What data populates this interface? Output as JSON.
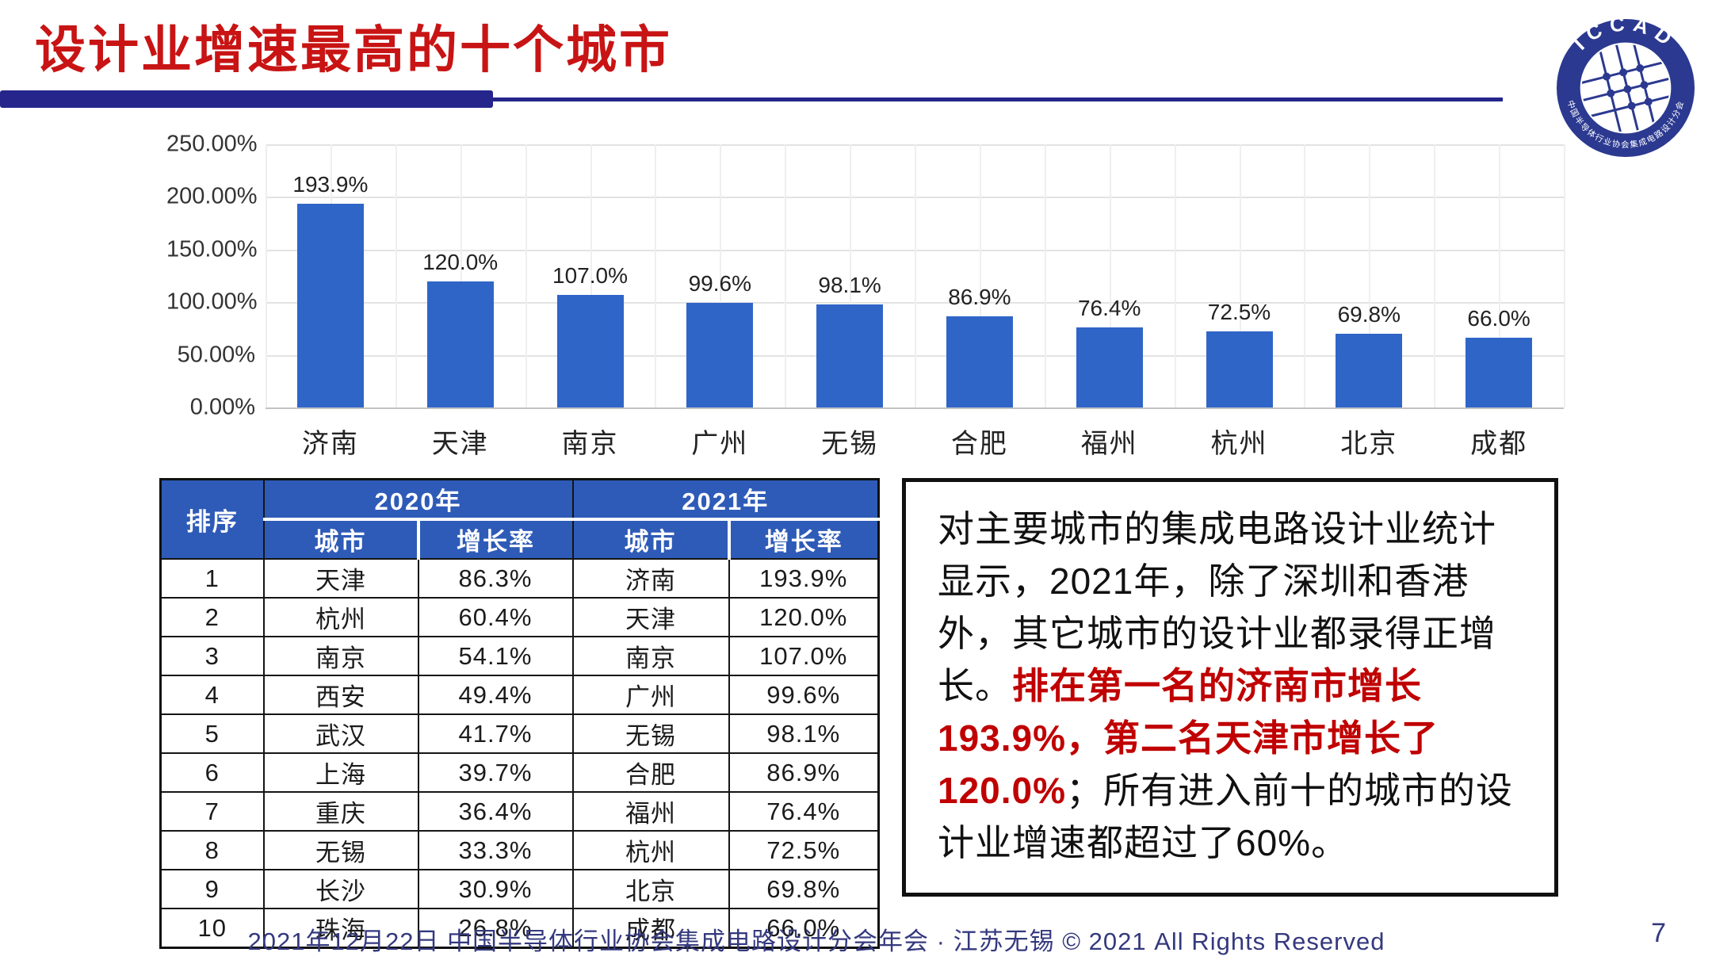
{
  "title": "设计业增速最高的十个城市",
  "logo": {
    "top_text": "ICCAD",
    "ring_text": "中国半导体行业协会集成电路设计分会"
  },
  "chart_data": {
    "type": "bar",
    "title": "",
    "xlabel": "",
    "ylabel": "",
    "categories": [
      "济南",
      "天津",
      "南京",
      "广州",
      "无锡",
      "合肥",
      "福州",
      "杭州",
      "北京",
      "成都"
    ],
    "values": [
      193.9,
      120.0,
      107.0,
      99.6,
      98.1,
      86.9,
      76.4,
      72.5,
      69.8,
      66.0
    ],
    "data_labels": [
      "193.9%",
      "120.0%",
      "107.0%",
      "99.6%",
      "98.1%",
      "86.9%",
      "76.4%",
      "72.5%",
      "69.8%",
      "66.0%"
    ],
    "ylim": [
      0,
      250
    ],
    "yticks": [
      "250.00%",
      "200.00%",
      "150.00%",
      "100.00%",
      "50.00%",
      "0.00%"
    ],
    "grid": true,
    "legend": "none",
    "bar_color": "#3065C8"
  },
  "table": {
    "rank_header": "排序",
    "group_headers": [
      "2020年",
      "2021年"
    ],
    "sub_headers": [
      "城市",
      "增长率",
      "城市",
      "增长率"
    ],
    "rows": [
      [
        "1",
        "天津",
        "86.3%",
        "济南",
        "193.9%"
      ],
      [
        "2",
        "杭州",
        "60.4%",
        "天津",
        "120.0%"
      ],
      [
        "3",
        "南京",
        "54.1%",
        "南京",
        "107.0%"
      ],
      [
        "4",
        "西安",
        "49.4%",
        "广州",
        "99.6%"
      ],
      [
        "5",
        "武汉",
        "41.7%",
        "无锡",
        "98.1%"
      ],
      [
        "6",
        "上海",
        "39.7%",
        "合肥",
        "86.9%"
      ],
      [
        "7",
        "重庆",
        "36.4%",
        "福州",
        "76.4%"
      ],
      [
        "8",
        "无锡",
        "33.3%",
        "杭州",
        "72.5%"
      ],
      [
        "9",
        "长沙",
        "30.9%",
        "北京",
        "69.8%"
      ],
      [
        "10",
        "珠海",
        "26.8%",
        "成都",
        "66.0%"
      ]
    ]
  },
  "textbox": {
    "black_1": "对主要城市的集成电路设计业统计显示，2021年，除了深圳和香港外，其它城市的设计业都录得正增长。",
    "red": "排在第一名的济南市增长193.9%，第二名天津市增长了120.0%",
    "black_2": "；所有进入前十的城市的设计业增速都超过了60%。"
  },
  "footer": {
    "text": "2021年12月22日 中国半导体行业协会集成电路设计分会年会 · 江苏无锡 © 2021 All Rights Reserved",
    "page_number": "7"
  },
  "colors": {
    "title_red": "#C81414",
    "accent_navy": "#25258C",
    "bar_blue": "#3065C8",
    "table_header_blue": "#2E5BB7",
    "logo_navy": "#2B3990",
    "text_red": "#C00000",
    "footer_navy": "#34397E"
  }
}
